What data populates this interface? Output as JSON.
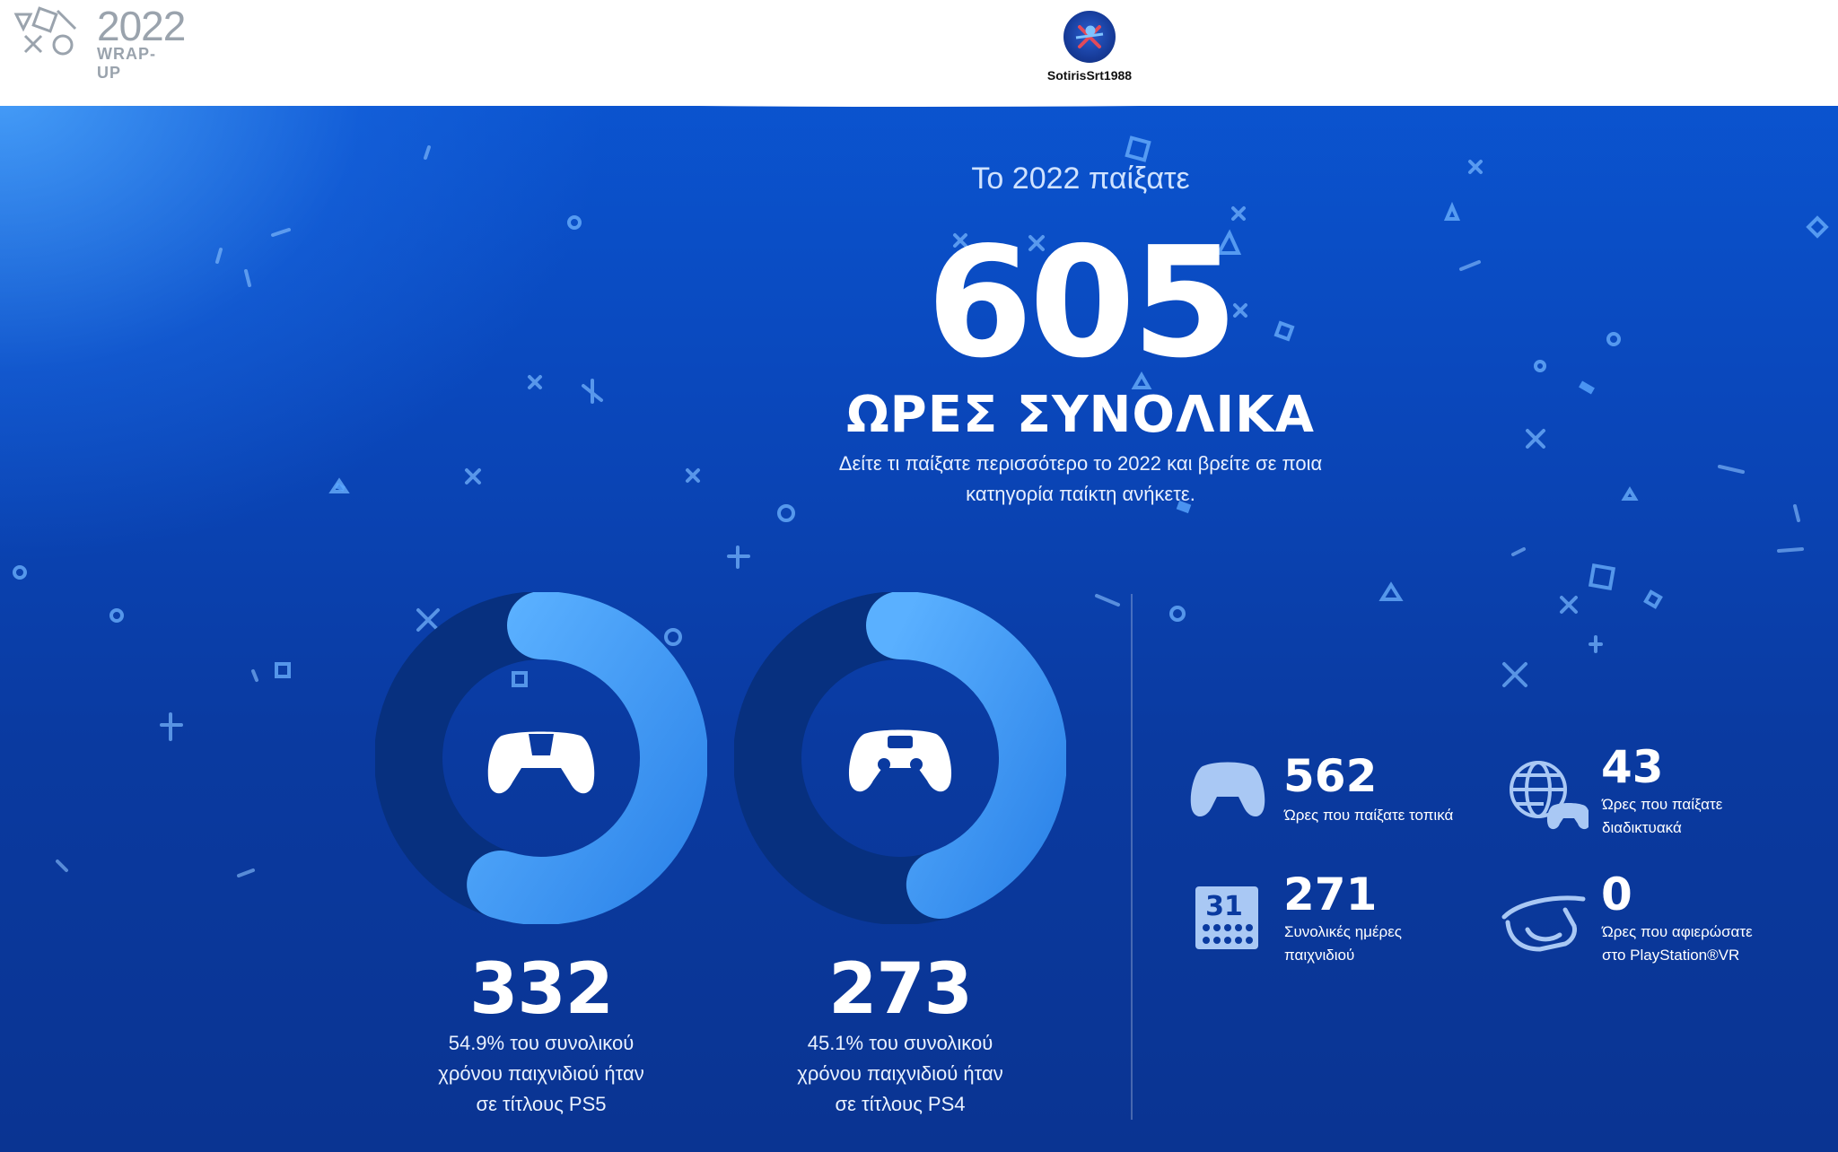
{
  "header": {
    "logo": {
      "year": "2022",
      "subtitle": "WRAP-UP",
      "icon": "playstation-shapes-icon"
    },
    "user": {
      "name": "SotirisSrt1988",
      "avatar_icon": "user-avatar"
    }
  },
  "hero": {
    "intro": "Το 2022 παίξατε",
    "total_hours": "605",
    "total_label": "ΩΡΕΣ ΣΥΝΟΛΙΚΑ",
    "subtitle_line1": "Δείτε τι παίξατε περισσότερο το 2022 και βρείτε σε ποια",
    "subtitle_line2": "κατηγορία παίκτη ανήκετε."
  },
  "platforms": [
    {
      "hours": "332",
      "share": 0.549,
      "icon": "ps5-controller-icon",
      "desc_line1": "54.9% του συνολικού",
      "desc_line2": "χρόνου παιχνιδιού ήταν",
      "desc_line3": "σε τίτλους PS5"
    },
    {
      "hours": "273",
      "share": 0.451,
      "icon": "ps4-controller-icon",
      "desc_line1": "45.1% του συνολικού",
      "desc_line2": "χρόνου παιχνιδιού ήταν",
      "desc_line3": "σε τίτλους PS4"
    }
  ],
  "stats": {
    "local": {
      "value": "562",
      "label_line1": "Ώρες που παίξατε τοπικά",
      "icon": "controller-icon"
    },
    "online": {
      "value": "43",
      "label_line1": "Ώρες που παίξατε",
      "label_line2": "διαδικτυακά",
      "icon": "globe-controller-icon"
    },
    "days": {
      "value": "271",
      "label_line1": "Συνολικές ημέρες",
      "label_line2": "παιχνιδιού",
      "icon": "calendar-icon",
      "calendar_text": "31"
    },
    "vr": {
      "value": "0",
      "label_line1": "Ώρες που αφιερώσατε",
      "label_line2": "στο PlayStation®VR",
      "icon": "vr-headset-icon"
    }
  },
  "colors": {
    "ring_track": "#07307f",
    "ring_fill": "#3d9af5",
    "ring_fill_light": "#5ab0ff",
    "background": "#0a3a9e"
  }
}
